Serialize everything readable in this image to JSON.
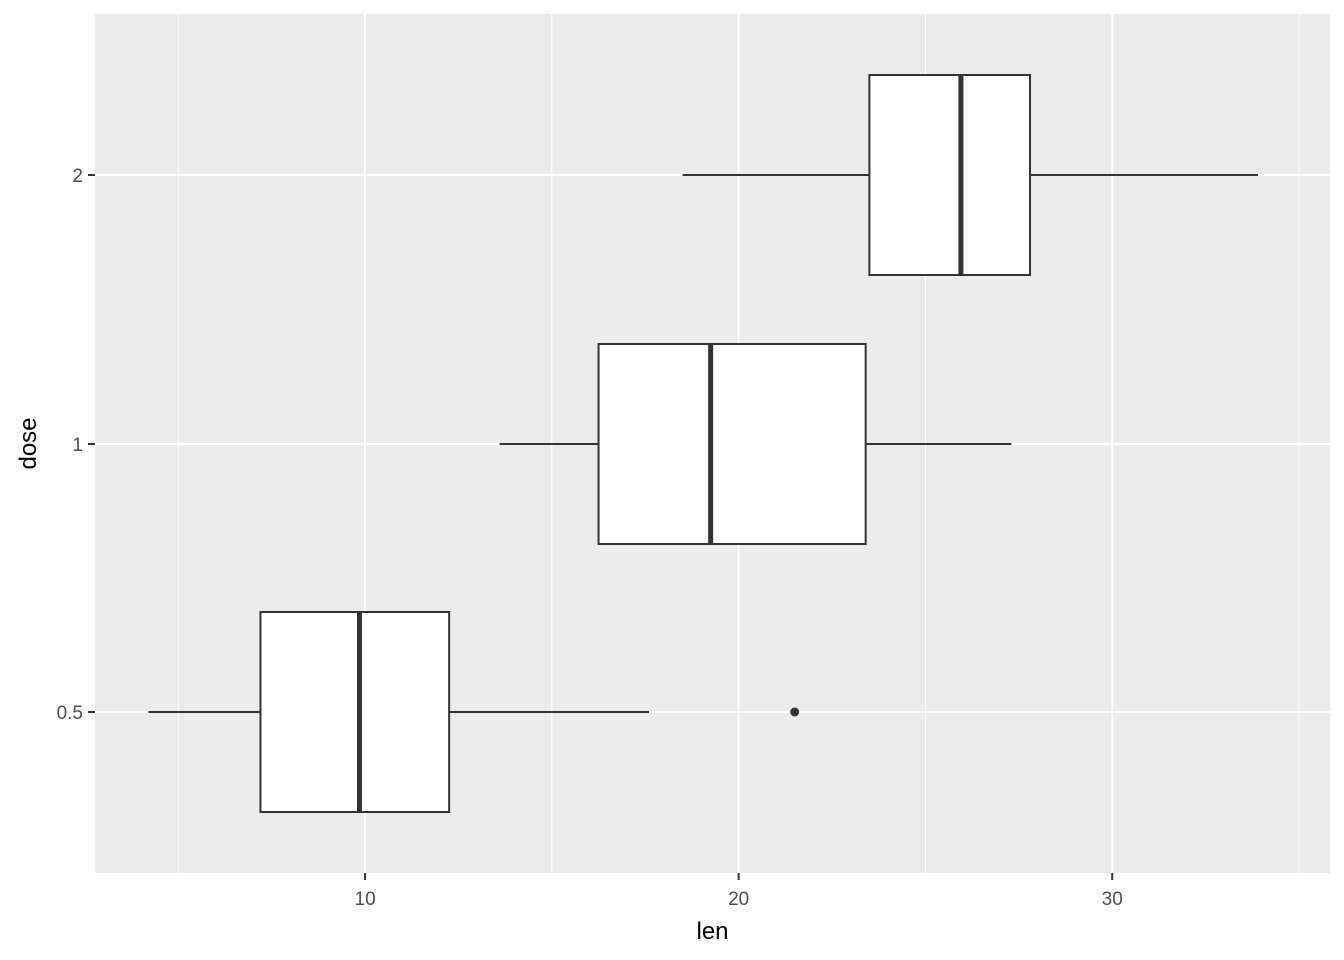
{
  "chart_data": {
    "type": "boxplot",
    "orientation": "horizontal",
    "xlabel": "len",
    "ylabel": "dose",
    "xlim": [
      2.77,
      35.83
    ],
    "x_ticks_major": [
      10,
      20,
      30
    ],
    "x_ticks_minor": [
      5,
      15,
      25,
      35
    ],
    "categories": [
      "0.5",
      "1",
      "2"
    ],
    "boxes": [
      {
        "category": "0.5",
        "whisker_low": 4.2,
        "q1": 7.2,
        "median": 9.85,
        "q3": 12.25,
        "whisker_high": 17.6,
        "outliers": [
          21.5
        ]
      },
      {
        "category": "1",
        "whisker_low": 13.6,
        "q1": 16.25,
        "median": 19.25,
        "q3": 23.4,
        "whisker_high": 27.3,
        "outliers": []
      },
      {
        "category": "2",
        "whisker_low": 18.5,
        "q1": 23.5,
        "median": 25.95,
        "q3": 27.8,
        "whisker_high": 33.9,
        "outliers": []
      }
    ],
    "grid": true,
    "legend": "none",
    "colors": {
      "panel": "#EBEBEB",
      "grid": "#FFFFFF",
      "box_fill": "#FFFFFF",
      "box_line": "#333333",
      "tick_text": "#4D4D4D",
      "title_text": "#000000"
    }
  }
}
